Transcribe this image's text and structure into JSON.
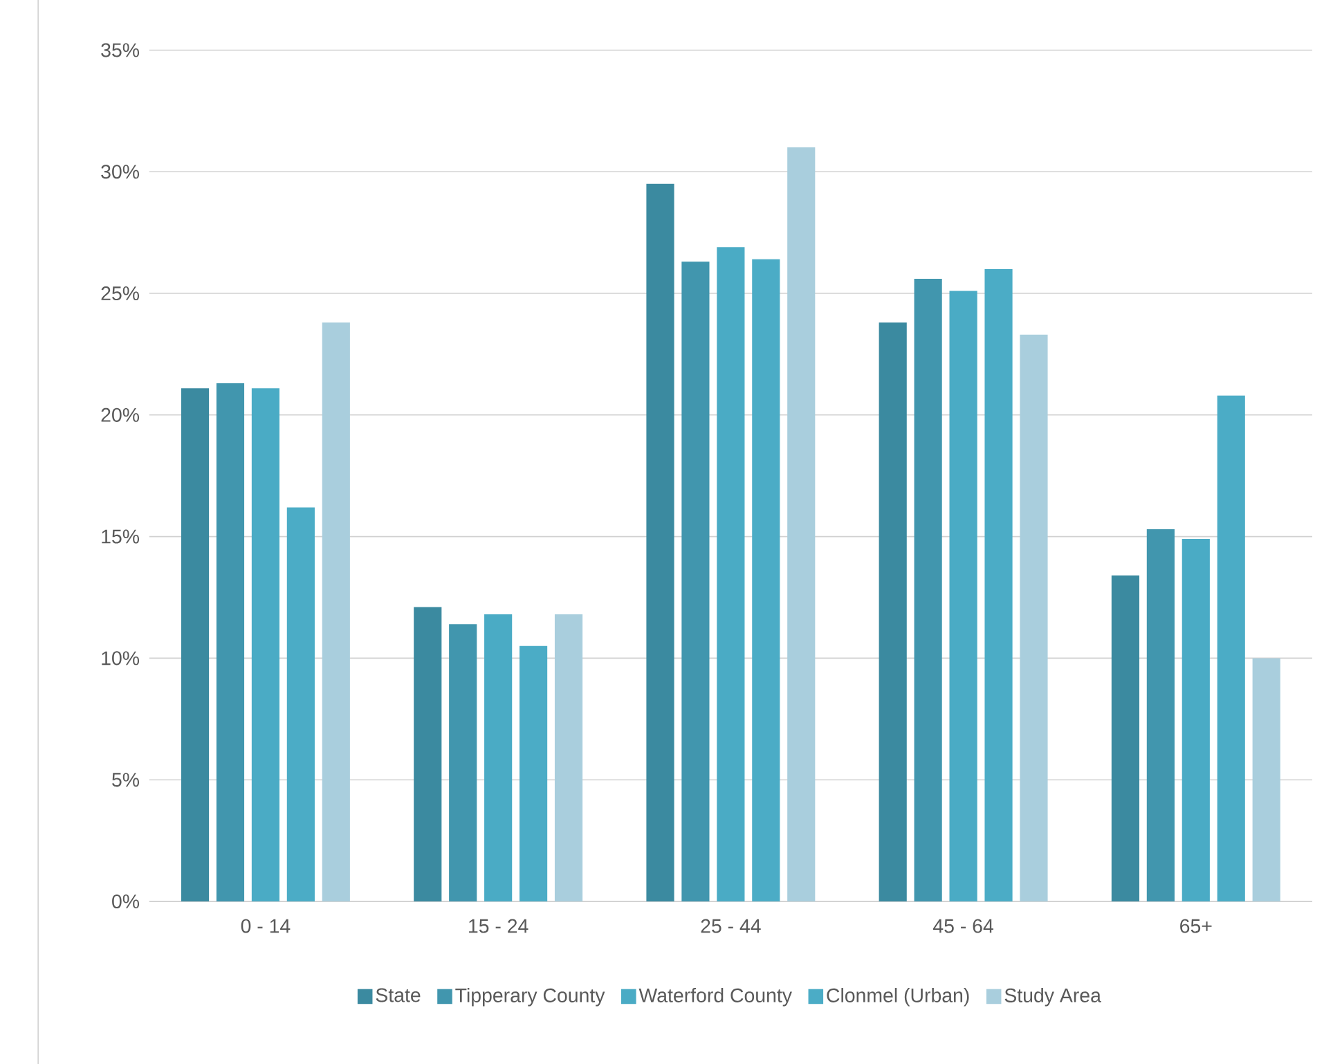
{
  "chart_data": {
    "type": "bar",
    "categories": [
      "0 - 14",
      "15 - 24",
      "25 - 44",
      "45 - 64",
      "65+"
    ],
    "series": [
      {
        "name": "State",
        "color": "#3b8aa0",
        "values": [
          21.1,
          12.1,
          29.5,
          23.8,
          13.4
        ]
      },
      {
        "name": "Tipperary  County",
        "color": "#4196ae",
        "values": [
          21.3,
          11.4,
          26.3,
          25.6,
          15.3
        ]
      },
      {
        "name": "Waterford County",
        "color": "#4aabc5",
        "values": [
          21.1,
          11.8,
          26.9,
          25.1,
          14.9
        ]
      },
      {
        "name": "Clonmel (Urban)",
        "color": "#4bacc6",
        "values": [
          16.2,
          10.5,
          26.4,
          26.0,
          20.8
        ]
      },
      {
        "name": "Study Area",
        "color": "#a9cedd",
        "values": [
          23.8,
          11.8,
          31.0,
          23.3,
          10.0
        ]
      }
    ],
    "ylim": [
      0,
      35
    ],
    "yticks": [
      {
        "value": 0,
        "label": "0%"
      },
      {
        "value": 5,
        "label": "5%"
      },
      {
        "value": 10,
        "label": "10%"
      },
      {
        "value": 15,
        "label": "15%"
      },
      {
        "value": 20,
        "label": "20%"
      },
      {
        "value": 25,
        "label": "25%"
      },
      {
        "value": 30,
        "label": "30%"
      },
      {
        "value": 35,
        "label": "35%"
      }
    ],
    "grid": "y",
    "legend": "bottom"
  }
}
